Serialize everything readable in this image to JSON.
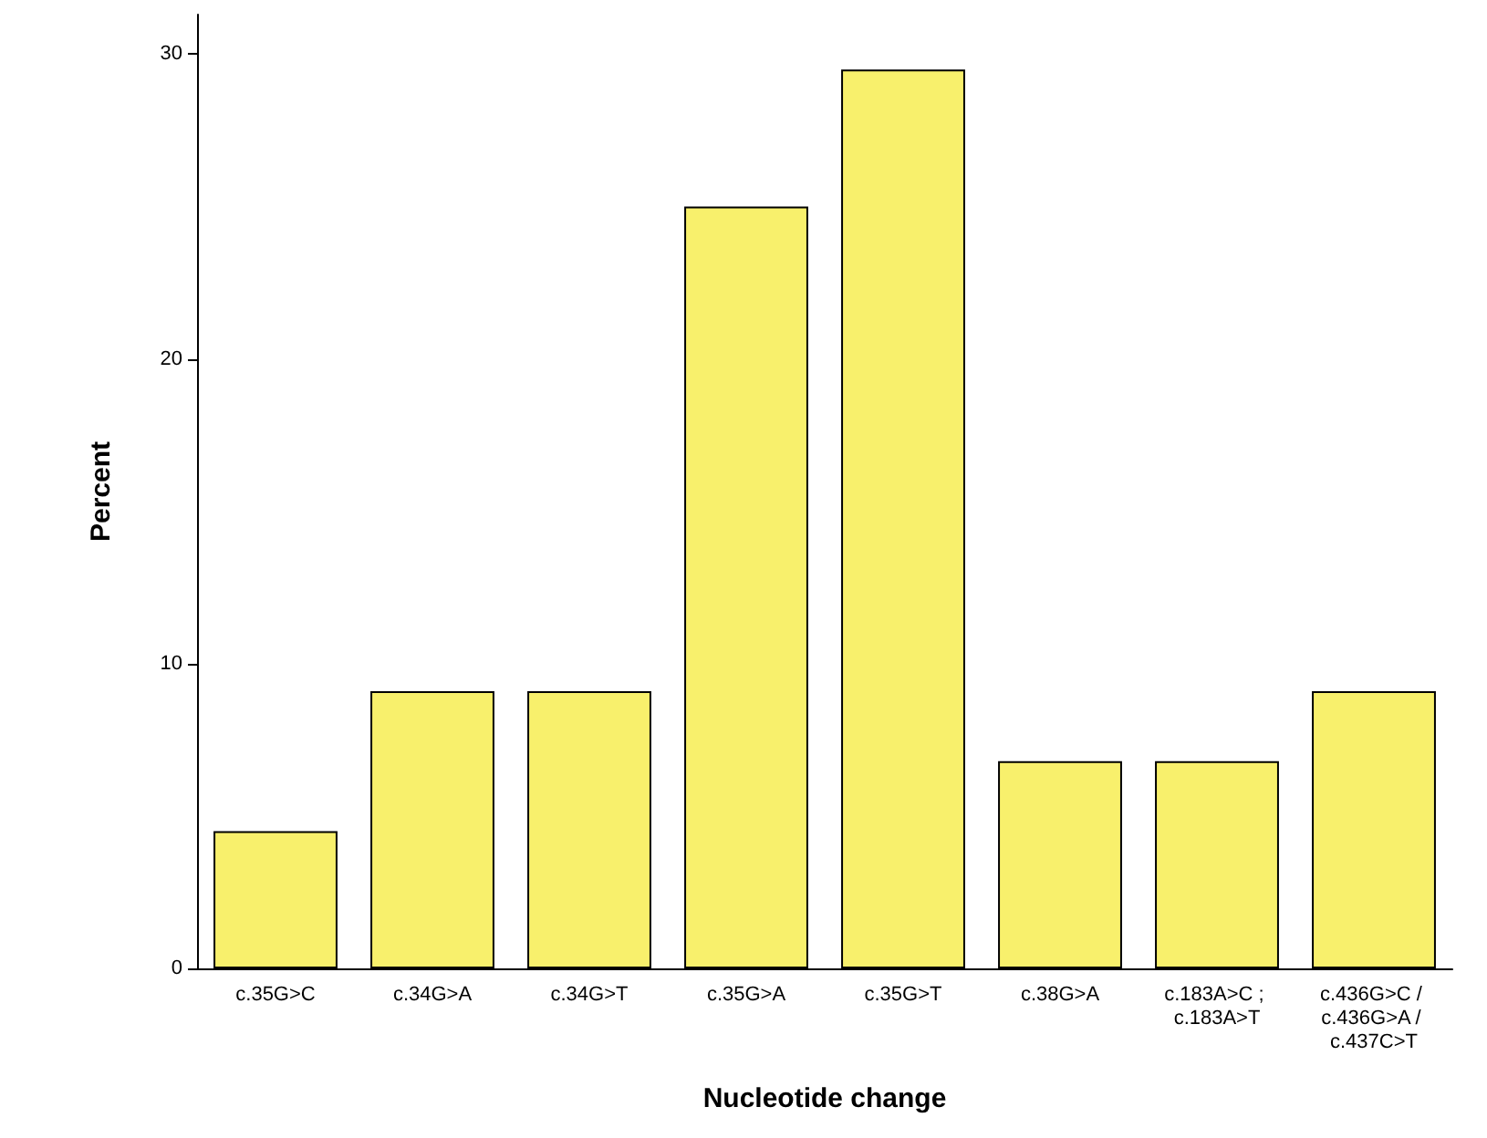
{
  "chart_data": {
    "type": "bar",
    "xlabel": "Nucleotide change",
    "ylabel": "Percent",
    "categories": [
      "c.35G>C",
      "c.34G>A",
      "c.34G>T",
      "c.35G>A",
      "c.35G>T",
      "c.38G>A",
      "c.183A>C ; c.183A>T",
      "c.436G>C / c.436G>A / c.437C>T"
    ],
    "values": [
      4.5,
      9.1,
      9.1,
      25.0,
      29.5,
      6.8,
      6.8,
      9.1
    ],
    "color": "#f8f06c",
    "ylim": [
      0,
      31.3
    ],
    "yticks": [
      0,
      10,
      20,
      30
    ],
    "grid": false
  }
}
